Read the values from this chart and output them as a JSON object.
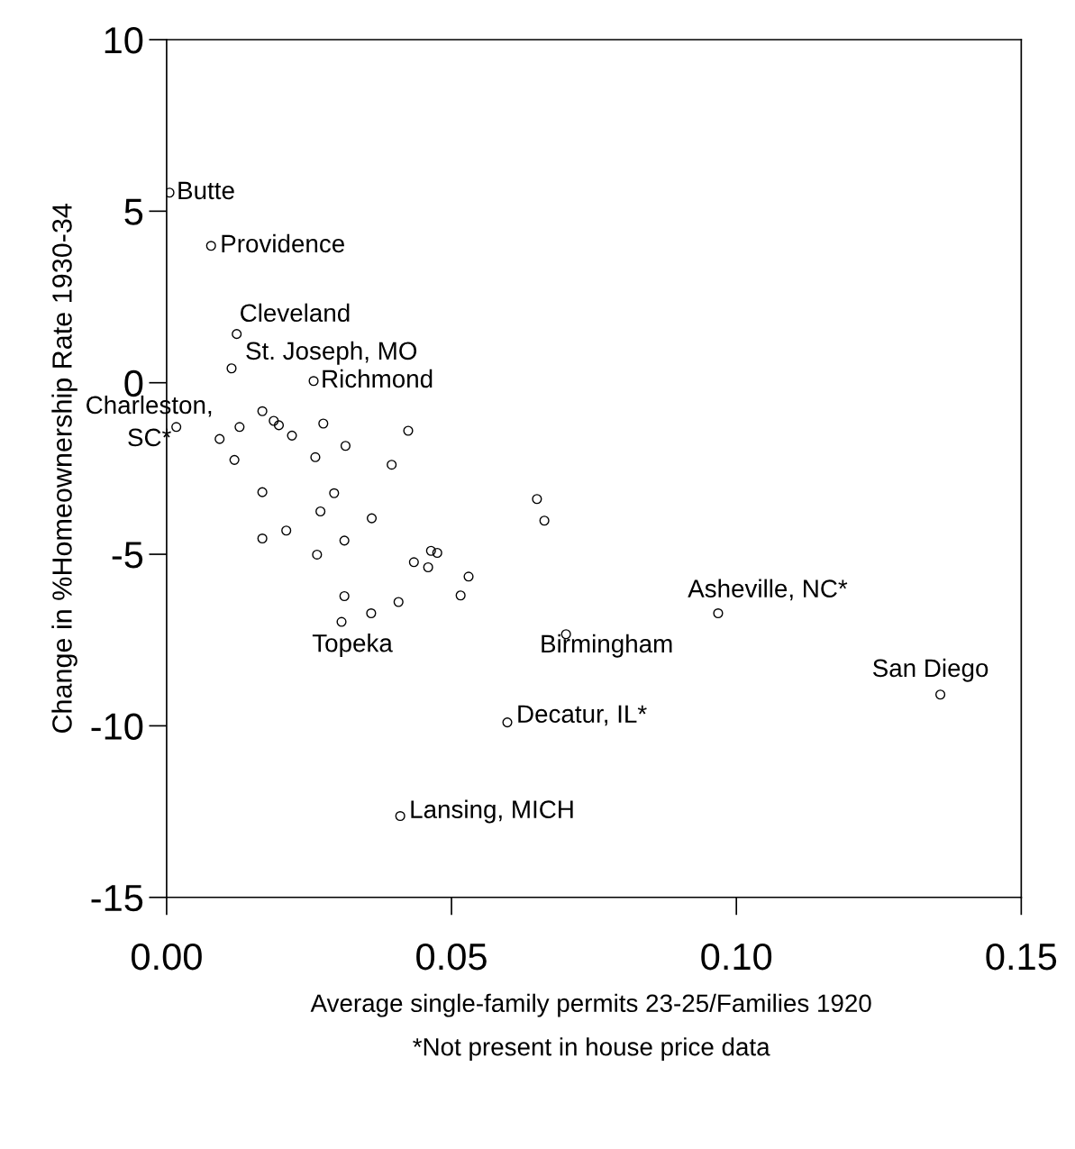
{
  "chart_data": {
    "type": "scatter",
    "xlabel": "Average single-family permits 23-25/Families 1920",
    "ylabel": "Change in %Homeownership Rate 1930-34",
    "xlim": [
      0,
      0.15
    ],
    "ylim": [
      -15,
      10
    ],
    "xticks": [
      {
        "value": 0,
        "label": "0.00"
      },
      {
        "value": 0.05,
        "label": "0.05"
      },
      {
        "value": 0.1,
        "label": "0.10"
      },
      {
        "value": 0.15,
        "label": "0.15"
      }
    ],
    "yticks": [
      -15,
      -10,
      -5,
      0,
      5,
      10
    ],
    "grid": false,
    "marker": "circle",
    "series": [
      {
        "color": "#000000",
        "x": [
          0.0005,
          0.0078,
          0.0123,
          0.0114,
          0.0258,
          0.0017,
          0.0168,
          0.0188,
          0.0197,
          0.0128,
          0.0093,
          0.022,
          0.0275,
          0.0424,
          0.0314,
          0.0119,
          0.0261,
          0.0395,
          0.0168,
          0.0294,
          0.027,
          0.036,
          0.0168,
          0.021,
          0.0312,
          0.0264,
          0.0464,
          0.0475,
          0.0434,
          0.0459,
          0.053,
          0.0312,
          0.0516,
          0.0407,
          0.0359,
          0.0307,
          0.065,
          0.0663,
          0.0701,
          0.0968,
          0.1358,
          0.0598,
          0.041
        ],
        "values": [
          5.54,
          3.99,
          1.42,
          0.42,
          0.05,
          -1.29,
          -0.83,
          -1.11,
          -1.24,
          -1.29,
          -1.64,
          -1.54,
          -1.19,
          -1.4,
          -1.84,
          -2.25,
          -2.17,
          -2.39,
          -3.19,
          -3.22,
          -3.75,
          -3.95,
          -4.54,
          -4.31,
          -4.6,
          -5.01,
          -4.9,
          -4.96,
          -5.23,
          -5.38,
          -5.65,
          -6.22,
          -6.2,
          -6.39,
          -6.72,
          -6.97,
          -3.39,
          -4.02,
          -7.33,
          -6.72,
          -9.09,
          -9.9,
          -12.63
        ]
      }
    ],
    "annotations": [
      {
        "text": "Butte",
        "x": 0.0005,
        "y": 5.54
      },
      {
        "text": "Providence",
        "x": 0.0078,
        "y": 3.99
      },
      {
        "text": "Cleveland",
        "x": 0.0123,
        "y": 1.42
      },
      {
        "text": "St. Joseph, MO",
        "x": 0.0114,
        "y": 0.42
      },
      {
        "text": "Richmond",
        "x": 0.0258,
        "y": 0.05
      },
      {
        "text": "Charleston,\nSC*",
        "x": 0.0017,
        "y": -1.29
      },
      {
        "text": "Topeka",
        "x": 0.0307,
        "y": -6.97
      },
      {
        "text": "Birmingham",
        "x": 0.0701,
        "y": -7.33
      },
      {
        "text": "Asheville, NC*",
        "x": 0.0968,
        "y": -6.72
      },
      {
        "text": "San Diego",
        "x": 0.1358,
        "y": -9.09
      },
      {
        "text": "Decatur, IL*",
        "x": 0.0598,
        "y": -9.9
      },
      {
        "text": "Lansing, MICH",
        "x": 0.041,
        "y": -12.63
      },
      "*Not present in house price data"
    ]
  }
}
